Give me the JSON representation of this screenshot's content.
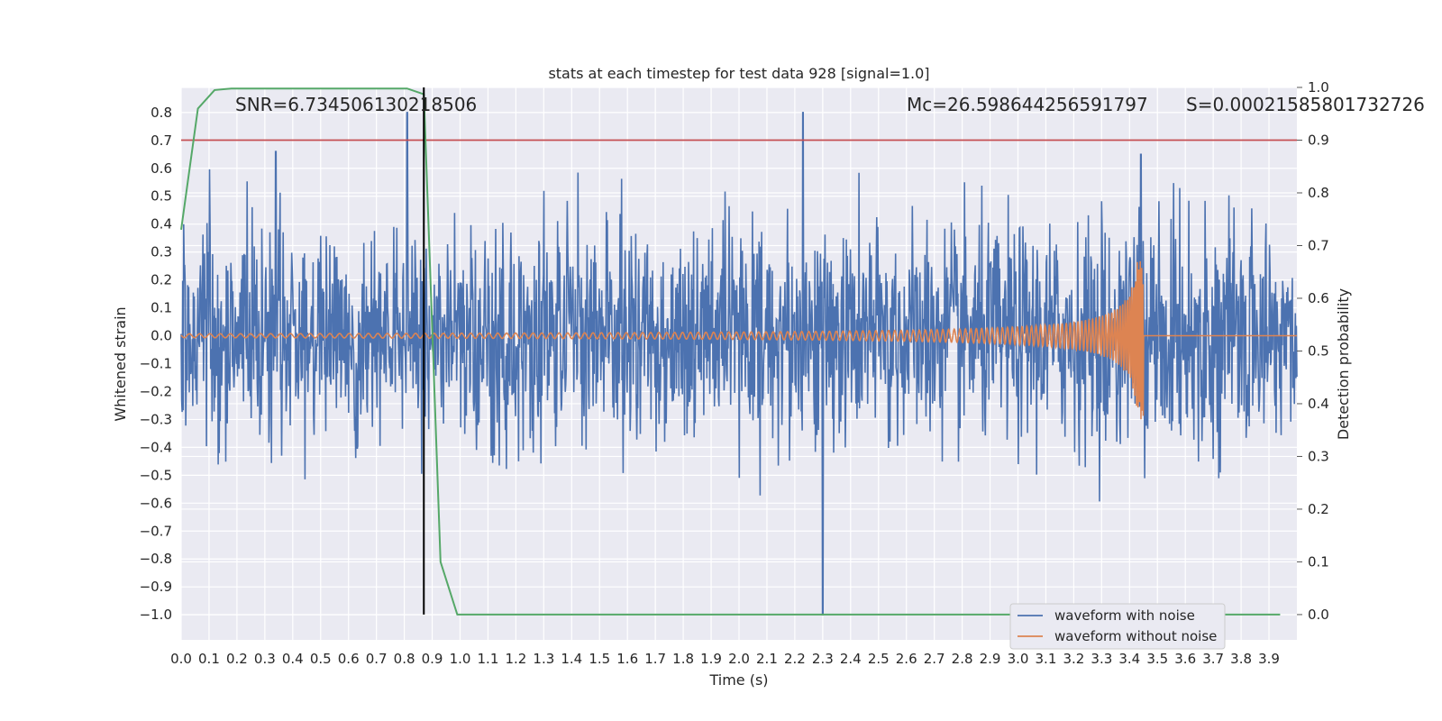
{
  "chart_data": {
    "type": "line",
    "title": "stats at each timestep for test data 928 [signal=1.0]",
    "xlabel": "Time (s)",
    "ylabel": "Whitened strain",
    "y2label": "Detection probability",
    "xlim": [
      0.0,
      4.0
    ],
    "ylim": [
      -1.09,
      0.89
    ],
    "y2lim": [
      -0.048,
      1.0
    ],
    "xticks": [
      0.0,
      0.1,
      0.2,
      0.3,
      0.4,
      0.5,
      0.6,
      0.7,
      0.8,
      0.9,
      1.0,
      1.1,
      1.2,
      1.3,
      1.4,
      1.5,
      1.6,
      1.7,
      1.8,
      1.9,
      2.0,
      2.1,
      2.2,
      2.3,
      2.4,
      2.5,
      2.6,
      2.7,
      2.8,
      2.9,
      3.0,
      3.1,
      3.2,
      3.3,
      3.4,
      3.5,
      3.6,
      3.7,
      3.8,
      3.9
    ],
    "yticks": [
      0.8,
      0.7,
      0.6,
      0.5,
      0.4,
      0.3,
      0.2,
      0.1,
      0.0,
      -0.1,
      -0.2,
      -0.3,
      -0.4,
      -0.5,
      -0.6,
      -0.7,
      -0.8,
      -0.9,
      -1.0
    ],
    "y2ticks": [
      1.0,
      0.9,
      0.8,
      0.7,
      0.6,
      0.5,
      0.4,
      0.3,
      0.2,
      0.1,
      0.0
    ],
    "grid": true,
    "legend_position": "lower-right",
    "annotations": {
      "snr": "SNR=6.734506130218506",
      "mc": "Mc=26.598644256591797",
      "s": "S=0.00021585801732726"
    },
    "series": [
      {
        "name": "waveform with noise",
        "color": "#4c72b0",
        "description_stats": {
          "typical_amplitude": 0.35,
          "peaks": [
            [
              0.34,
              0.66
            ],
            [
              0.81,
              0.8
            ],
            [
              2.23,
              0.8
            ],
            [
              2.3,
              -1.0
            ],
            [
              3.44,
              0.65
            ]
          ]
        }
      },
      {
        "name": "waveform without noise",
        "color": "#dd8452",
        "chirp": {
          "start_amp": 0.007,
          "end_time": 3.45,
          "peak_amp": 0.3
        }
      },
      {
        "name": "detection probability",
        "axis": "y2",
        "color": "#55a868",
        "x": [
          0.0,
          0.06,
          0.12,
          0.18,
          0.25,
          0.81,
          0.87,
          0.93,
          0.99,
          1.06,
          1.2,
          1.5,
          2.0,
          2.5,
          3.0,
          3.5,
          3.94
        ],
        "y": [
          0.73,
          0.96,
          0.995,
          0.998,
          0.998,
          0.998,
          0.987,
          0.1,
          0.0,
          0.0,
          0.0,
          0.0,
          0.0,
          0.0,
          0.0,
          0.0,
          0.0
        ]
      }
    ],
    "threshold_line": {
      "axis": "y2",
      "value": 0.9,
      "color": "#c44e52"
    },
    "vertical_line": {
      "x": 0.87,
      "color": "#000000"
    }
  }
}
